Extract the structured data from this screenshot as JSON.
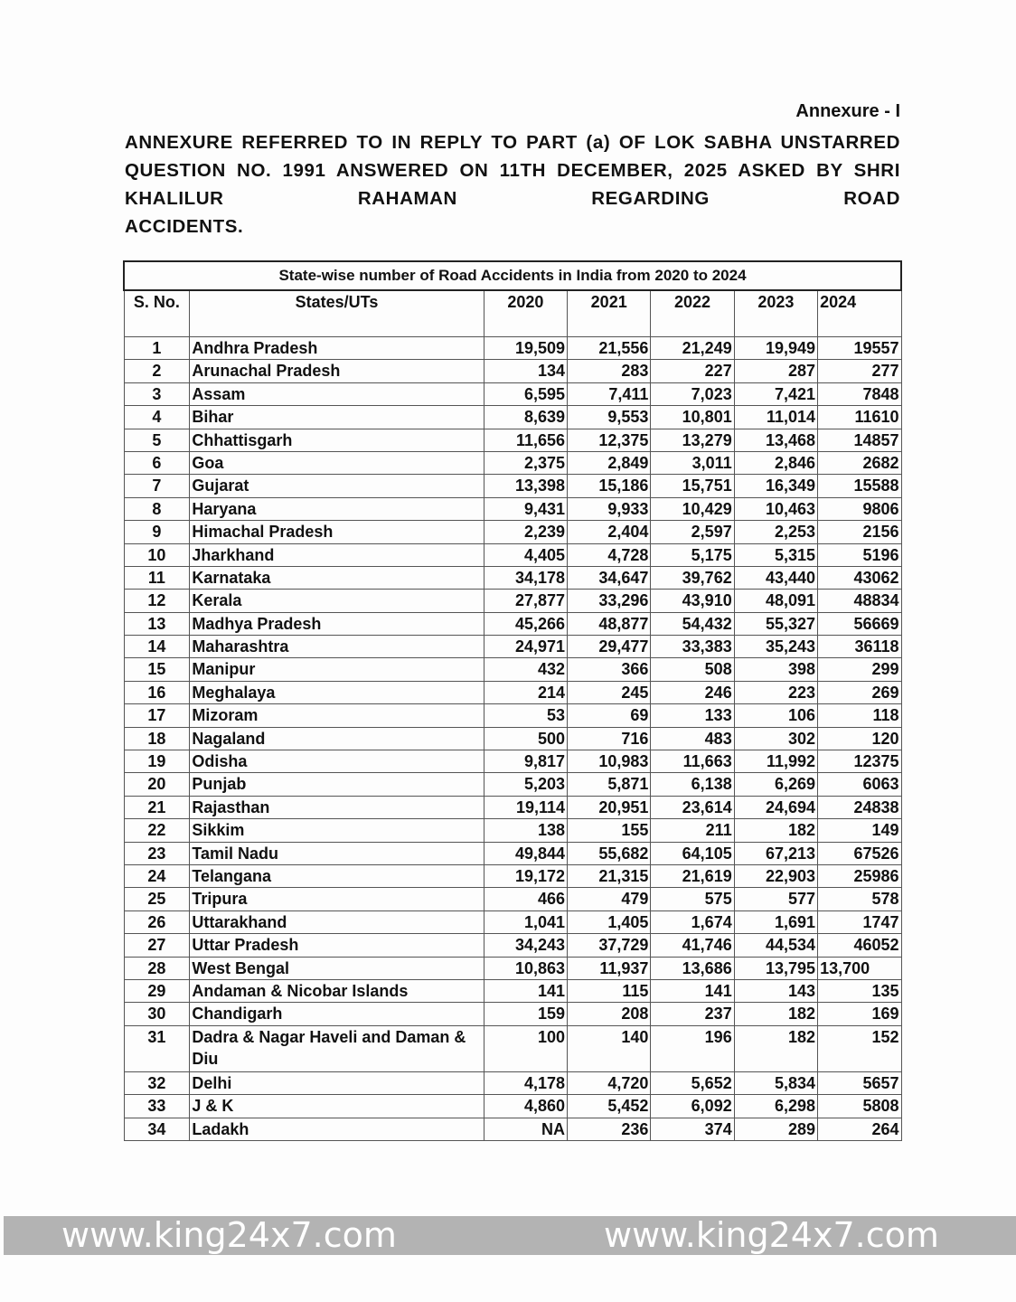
{
  "annexure_label": "Annexure - I",
  "heading_lines": [
    "ANNEXURE REFERRED TO IN REPLY TO PART (a) OF LOK SABHA",
    "UNSTARRED QUESTION NO. 1991 ANSWERED ON 11TH DECEMBER,",
    "2025 ASKED BY SHRI KHALILUR RAHAMAN REGARDING ROAD",
    "ACCIDENTS."
  ],
  "table": {
    "caption": "State-wise number of Road Accidents in India from 2020 to 2024",
    "headers": [
      "S. No.",
      "States/UTs",
      "2020",
      "2021",
      "2022",
      "2023",
      "2024"
    ],
    "rows": [
      [
        "1",
        "Andhra Pradesh",
        "19,509",
        "21,556",
        "21,249",
        "19,949",
        "19557"
      ],
      [
        "2",
        "Arunachal Pradesh",
        "134",
        "283",
        "227",
        "287",
        "277"
      ],
      [
        "3",
        "Assam",
        "6,595",
        "7,411",
        "7,023",
        "7,421",
        "7848"
      ],
      [
        "4",
        "Bihar",
        "8,639",
        "9,553",
        "10,801",
        "11,014",
        "11610"
      ],
      [
        "5",
        "Chhattisgarh",
        "11,656",
        "12,375",
        "13,279",
        "13,468",
        "14857"
      ],
      [
        "6",
        "Goa",
        "2,375",
        "2,849",
        "3,011",
        "2,846",
        "2682"
      ],
      [
        "7",
        "Gujarat",
        "13,398",
        "15,186",
        "15,751",
        "16,349",
        "15588"
      ],
      [
        "8",
        "Haryana",
        "9,431",
        "9,933",
        "10,429",
        "10,463",
        "9806"
      ],
      [
        "9",
        "Himachal Pradesh",
        "2,239",
        "2,404",
        "2,597",
        "2,253",
        "2156"
      ],
      [
        "10",
        "Jharkhand",
        "4,405",
        "4,728",
        "5,175",
        "5,315",
        "5196"
      ],
      [
        "11",
        "Karnataka",
        "34,178",
        "34,647",
        "39,762",
        "43,440",
        "43062"
      ],
      [
        "12",
        "Kerala",
        "27,877",
        "33,296",
        "43,910",
        "48,091",
        "48834"
      ],
      [
        "13",
        "Madhya Pradesh",
        "45,266",
        "48,877",
        "54,432",
        "55,327",
        "56669"
      ],
      [
        "14",
        "Maharashtra",
        "24,971",
        "29,477",
        "33,383",
        "35,243",
        "36118"
      ],
      [
        "15",
        "Manipur",
        "432",
        "366",
        "508",
        "398",
        "299"
      ],
      [
        "16",
        "Meghalaya",
        "214",
        "245",
        "246",
        "223",
        "269"
      ],
      [
        "17",
        "Mizoram",
        "53",
        "69",
        "133",
        "106",
        "118"
      ],
      [
        "18",
        "Nagaland",
        "500",
        "716",
        "483",
        "302",
        "120"
      ],
      [
        "19",
        "Odisha",
        "9,817",
        "10,983",
        "11,663",
        "11,992",
        "12375"
      ],
      [
        "20",
        "Punjab",
        "5,203",
        "5,871",
        "6,138",
        "6,269",
        "6063"
      ],
      [
        "21",
        "Rajasthan",
        "19,114",
        "20,951",
        "23,614",
        "24,694",
        "24838"
      ],
      [
        "22",
        "Sikkim",
        "138",
        "155",
        "211",
        "182",
        "149"
      ],
      [
        "23",
        "Tamil Nadu",
        "49,844",
        "55,682",
        "64,105",
        "67,213",
        "67526"
      ],
      [
        "24",
        "Telangana",
        "19,172",
        "21,315",
        "21,619",
        "22,903",
        "25986"
      ],
      [
        "25",
        "Tripura",
        "466",
        "479",
        "575",
        "577",
        "578"
      ],
      [
        "26",
        "Uttarakhand",
        "1,041",
        "1,405",
        "1,674",
        "1,691",
        "1747"
      ],
      [
        "27",
        "Uttar Pradesh",
        "34,243",
        "37,729",
        "41,746",
        "44,534",
        "46052"
      ],
      [
        "28",
        "West Bengal",
        "10,863",
        "11,937",
        "13,686",
        "13,795",
        "13,700"
      ],
      [
        "29",
        "Andaman & Nicobar Islands",
        "141",
        "115",
        "141",
        "143",
        "135"
      ],
      [
        "30",
        "Chandigarh",
        "159",
        "208",
        "237",
        "182",
        "169"
      ],
      [
        "31",
        "Dadra & Nagar Haveli and Daman & Diu",
        "100",
        "140",
        "196",
        "182",
        "152"
      ],
      [
        "32",
        "Delhi",
        "4,178",
        "4,720",
        "5,652",
        "5,834",
        "5657"
      ],
      [
        "33",
        "J & K",
        "4,860",
        "5,452",
        "6,092",
        "6,298",
        "5808"
      ],
      [
        "34",
        "Ladakh",
        "NA",
        "236",
        "374",
        "289",
        "264"
      ]
    ]
  },
  "watermark": {
    "text": "www.king24x7.com",
    "color": "#ffffff"
  }
}
